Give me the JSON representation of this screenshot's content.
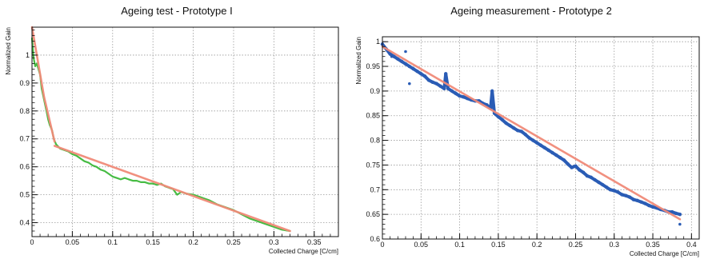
{
  "chart_data": [
    {
      "type": "line",
      "title": "Ageing test - Prototype I",
      "xlabel": "Collected Charge [C/cm]",
      "ylabel": "Normalized Gain",
      "xlim": [
        0,
        0.38
      ],
      "ylim": [
        0.35,
        1.1
      ],
      "xticks": [
        0.05,
        0.1,
        0.15,
        0.2,
        0.25,
        0.3,
        0.35
      ],
      "xtick_labels": [
        "0.05",
        "0.1",
        "0.15",
        "0.2",
        "0.25",
        "0.3",
        "0.35"
      ],
      "yticks": [
        0.4,
        0.5,
        0.6,
        0.7,
        0.8,
        0.9,
        1.0
      ],
      "ytick_labels": [
        "0.4",
        "0.5",
        "0.6",
        "0.7",
        "0.8",
        "0.9",
        "1"
      ],
      "x_origin_label": "0",
      "grid": true,
      "series": [
        {
          "style": "line",
          "color": "#3db83a",
          "x": [
            0.0,
            0.002,
            0.004,
            0.006,
            0.008,
            0.01,
            0.012,
            0.015,
            0.018,
            0.02,
            0.022,
            0.025,
            0.027,
            0.03,
            0.035,
            0.04,
            0.045,
            0.05,
            0.055,
            0.06,
            0.065,
            0.07,
            0.075,
            0.08,
            0.085,
            0.09,
            0.095,
            0.1,
            0.105,
            0.11,
            0.115,
            0.12,
            0.125,
            0.13,
            0.135,
            0.14,
            0.145,
            0.15,
            0.155,
            0.16,
            0.165,
            0.17,
            0.175,
            0.18,
            0.185,
            0.19,
            0.2,
            0.21,
            0.22,
            0.23,
            0.24,
            0.25,
            0.26,
            0.27,
            0.28,
            0.29,
            0.3,
            0.31,
            0.32
          ],
          "y": [
            1.06,
            0.99,
            0.96,
            0.97,
            0.95,
            0.93,
            0.88,
            0.84,
            0.8,
            0.77,
            0.75,
            0.73,
            0.7,
            0.68,
            0.665,
            0.66,
            0.655,
            0.645,
            0.64,
            0.63,
            0.62,
            0.615,
            0.605,
            0.6,
            0.59,
            0.585,
            0.575,
            0.565,
            0.56,
            0.555,
            0.56,
            0.555,
            0.55,
            0.55,
            0.545,
            0.545,
            0.54,
            0.54,
            0.535,
            0.54,
            0.53,
            0.525,
            0.52,
            0.5,
            0.51,
            0.505,
            0.5,
            0.49,
            0.48,
            0.465,
            0.455,
            0.445,
            0.43,
            0.415,
            0.405,
            0.395,
            0.385,
            0.375,
            0.37
          ]
        },
        {
          "style": "line",
          "color": "#f08a78",
          "x": [
            0.0,
            0.015,
            0.028
          ],
          "y": [
            1.1,
            0.85,
            0.69
          ]
        },
        {
          "style": "line",
          "color": "#f08a78",
          "x": [
            0.028,
            0.32
          ],
          "y": [
            0.675,
            0.37
          ]
        }
      ]
    },
    {
      "type": "scatter",
      "title": "Ageing measurement - Prototype 2",
      "xlabel": "Collected Charge [C/cm]",
      "ylabel": "Normalized Gain",
      "xlim": [
        0,
        0.41
      ],
      "ylim": [
        0.6,
        1.01
      ],
      "xticks": [
        0.05,
        0.1,
        0.15,
        0.2,
        0.25,
        0.3,
        0.35,
        0.4
      ],
      "xtick_labels": [
        "0.05",
        "0.1",
        "0.15",
        "0.2",
        "0.25",
        "0.3",
        "0.35",
        "0.4"
      ],
      "yticks": [
        0.6,
        0.65,
        0.7,
        0.75,
        0.8,
        0.85,
        0.9,
        0.95,
        1.0
      ],
      "ytick_labels": [
        "0.6",
        "0.65",
        "0.7",
        "0.75",
        "0.8",
        "0.85",
        "0.9",
        "0.95",
        "1"
      ],
      "x_origin_label": "0",
      "grid": true,
      "series": [
        {
          "style": "points-dense",
          "color": "#2a5cb5",
          "x": [
            0.0,
            0.005,
            0.01,
            0.015,
            0.02,
            0.025,
            0.03,
            0.035,
            0.04,
            0.045,
            0.05,
            0.055,
            0.06,
            0.065,
            0.07,
            0.075,
            0.08,
            0.082,
            0.085,
            0.09,
            0.095,
            0.1,
            0.105,
            0.11,
            0.115,
            0.12,
            0.125,
            0.13,
            0.135,
            0.14,
            0.142,
            0.145,
            0.15,
            0.155,
            0.16,
            0.165,
            0.17,
            0.175,
            0.18,
            0.185,
            0.19,
            0.195,
            0.2,
            0.205,
            0.21,
            0.215,
            0.22,
            0.225,
            0.23,
            0.235,
            0.24,
            0.245,
            0.25,
            0.255,
            0.26,
            0.265,
            0.27,
            0.275,
            0.28,
            0.285,
            0.29,
            0.295,
            0.3,
            0.305,
            0.31,
            0.315,
            0.32,
            0.325,
            0.33,
            0.335,
            0.34,
            0.345,
            0.35,
            0.355,
            0.36,
            0.365,
            0.37,
            0.375,
            0.38,
            0.385
          ],
          "y": [
            0.995,
            0.985,
            0.975,
            0.97,
            0.965,
            0.96,
            0.955,
            0.95,
            0.945,
            0.94,
            0.935,
            0.93,
            0.922,
            0.918,
            0.915,
            0.91,
            0.905,
            0.935,
            0.905,
            0.9,
            0.895,
            0.89,
            0.888,
            0.885,
            0.882,
            0.88,
            0.88,
            0.875,
            0.872,
            0.865,
            0.9,
            0.855,
            0.848,
            0.842,
            0.835,
            0.83,
            0.825,
            0.82,
            0.818,
            0.812,
            0.805,
            0.8,
            0.795,
            0.79,
            0.785,
            0.78,
            0.775,
            0.77,
            0.765,
            0.76,
            0.752,
            0.745,
            0.748,
            0.74,
            0.735,
            0.728,
            0.725,
            0.72,
            0.715,
            0.71,
            0.705,
            0.7,
            0.698,
            0.695,
            0.69,
            0.688,
            0.685,
            0.68,
            0.678,
            0.675,
            0.672,
            0.668,
            0.665,
            0.663,
            0.66,
            0.658,
            0.655,
            0.655,
            0.652,
            0.65
          ]
        },
        {
          "style": "points",
          "color": "#2a5cb5",
          "x": [
            0.012,
            0.03,
            0.035,
            0.385
          ],
          "y": [
            0.97,
            0.98,
            0.915,
            0.63
          ]
        },
        {
          "style": "line",
          "color": "#f08a78",
          "x": [
            0.0,
            0.385
          ],
          "y": [
            0.99,
            0.64
          ]
        }
      ]
    }
  ]
}
